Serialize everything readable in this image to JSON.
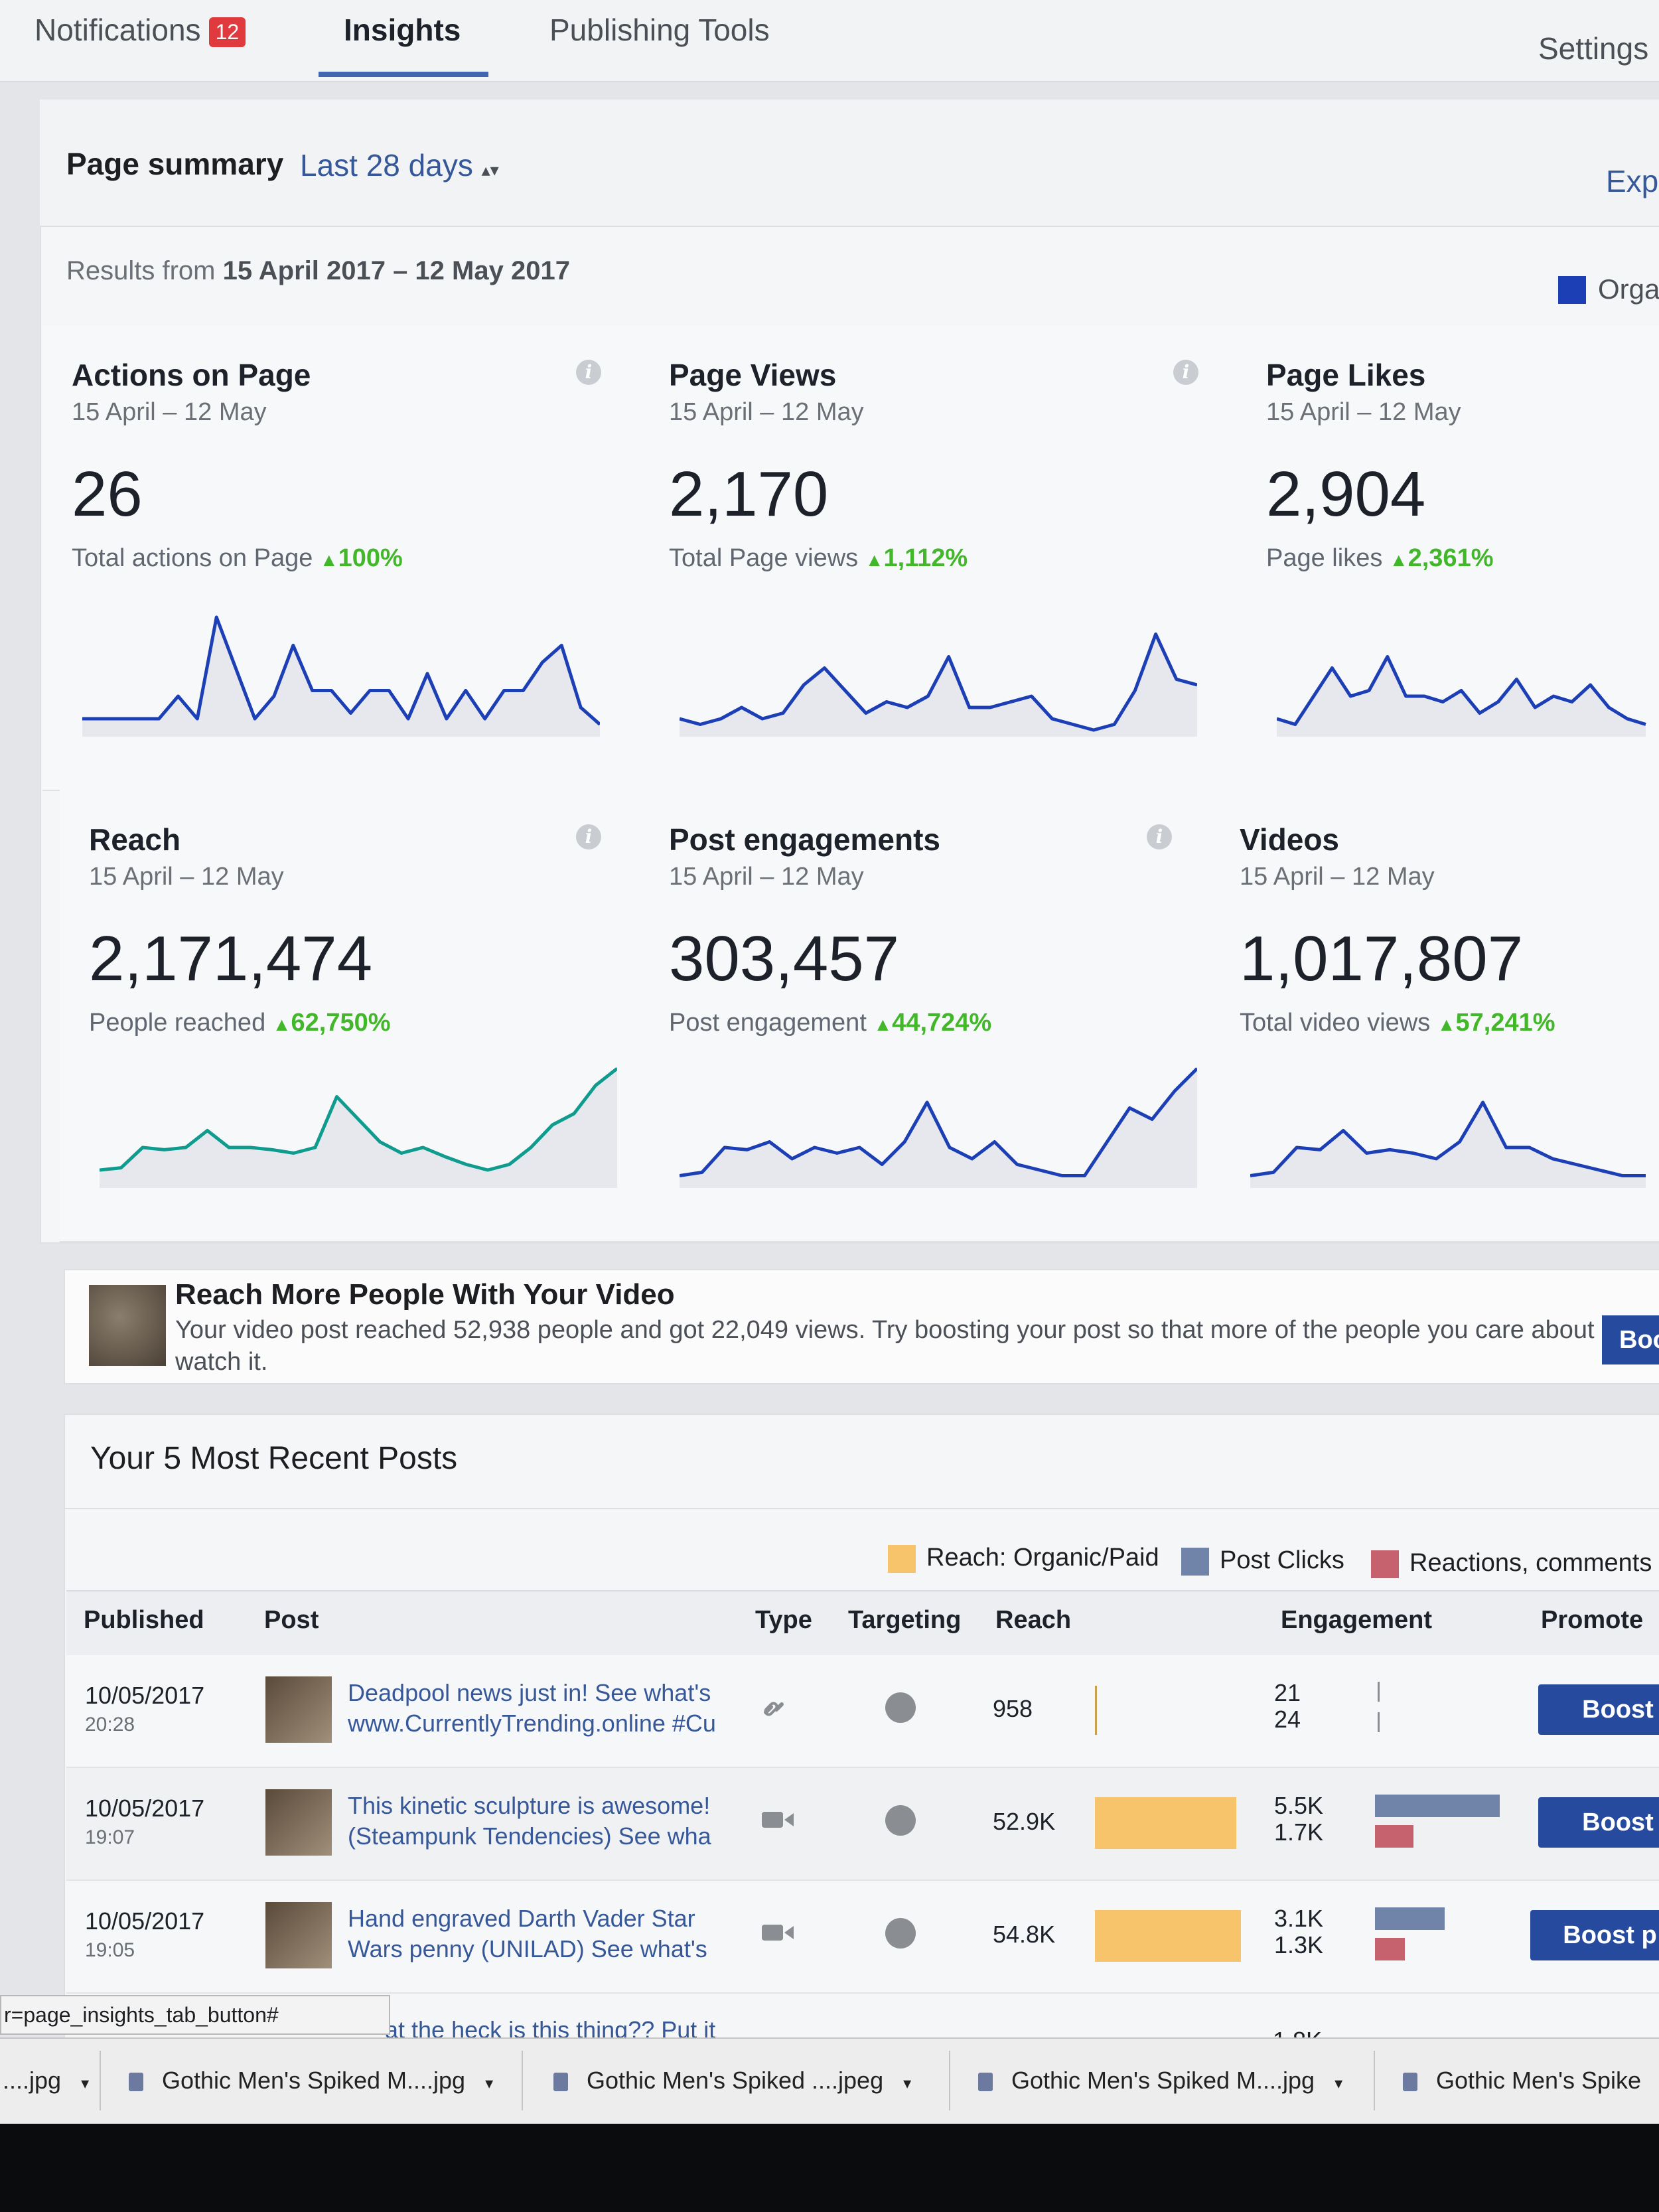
{
  "nav": {
    "notifications_label": "Notifications",
    "notifications_count": "12",
    "insights_label": "Insights",
    "publishing_label": "Publishing Tools",
    "settings_label": "Settings"
  },
  "summary": {
    "title": "Page summary",
    "period": "Last 28 days",
    "export_label": "Exp",
    "results_prefix": "Results from",
    "results_range": "15 April 2017 – 12 May 2017",
    "legend_label": "Orga"
  },
  "cards": [
    {
      "title": "Actions on Page",
      "range": "15 April – 12 May",
      "value": "26",
      "sub": "Total actions on Page",
      "pct": "100%",
      "spark": [
        0.1,
        0.1,
        0.1,
        0.1,
        0.1,
        0.3,
        0.1,
        1.0,
        0.55,
        0.1,
        0.3,
        0.75,
        0.35,
        0.35,
        0.15,
        0.35,
        0.35,
        0.1,
        0.5,
        0.1,
        0.35,
        0.1,
        0.35,
        0.35,
        0.6,
        0.75,
        0.2,
        0.05
      ]
    },
    {
      "title": "Page Views",
      "range": "15 April – 12 May",
      "value": "2,170",
      "sub": "Total Page views",
      "pct": "1,112%",
      "spark": [
        0.1,
        0.05,
        0.1,
        0.2,
        0.1,
        0.15,
        0.4,
        0.55,
        0.35,
        0.15,
        0.25,
        0.2,
        0.3,
        0.65,
        0.2,
        0.2,
        0.25,
        0.3,
        0.1,
        0.05,
        0.0,
        0.05,
        0.35,
        0.85,
        0.45,
        0.4
      ]
    },
    {
      "title": "Page Likes",
      "range": "15 April – 12 May",
      "value": "2,904",
      "sub": "Page likes",
      "pct": "2,361%",
      "spark": [
        0.1,
        0.05,
        0.3,
        0.55,
        0.3,
        0.35,
        0.65,
        0.3,
        0.3,
        0.25,
        0.35,
        0.15,
        0.25,
        0.45,
        0.2,
        0.3,
        0.25,
        0.4,
        0.2,
        0.1,
        0.05
      ]
    },
    {
      "title": "Reach",
      "range": "15 April – 12 May",
      "value": "2,171,474",
      "sub": "People reached",
      "pct": "62,750%",
      "spark": [
        0.1,
        0.12,
        0.3,
        0.28,
        0.3,
        0.45,
        0.3,
        0.3,
        0.28,
        0.25,
        0.3,
        0.75,
        0.55,
        0.35,
        0.25,
        0.3,
        0.22,
        0.15,
        0.1,
        0.15,
        0.3,
        0.5,
        0.6,
        0.85,
        1.0
      ]
    },
    {
      "title": "Post engagements",
      "range": "15 April – 12 May",
      "value": "303,457",
      "sub": "Post engagement",
      "pct": "44,724%",
      "spark": [
        0.05,
        0.08,
        0.3,
        0.28,
        0.35,
        0.2,
        0.3,
        0.25,
        0.3,
        0.15,
        0.35,
        0.7,
        0.3,
        0.2,
        0.35,
        0.15,
        0.1,
        0.05,
        0.05,
        0.35,
        0.65,
        0.55,
        0.8,
        1.0
      ]
    },
    {
      "title": "Videos",
      "range": "15 April – 12 May",
      "value": "1,017,807",
      "sub": "Total video views",
      "pct": "57,241%",
      "spark": [
        0.05,
        0.08,
        0.3,
        0.28,
        0.45,
        0.25,
        0.28,
        0.25,
        0.2,
        0.35,
        0.7,
        0.3,
        0.3,
        0.2,
        0.15,
        0.1,
        0.05,
        0.05
      ]
    }
  ],
  "colors": {
    "accent": "#1c3fb5",
    "reach_line": "#0f9b8e",
    "positive": "#42b72a",
    "boost": "#264b9e"
  },
  "banner": {
    "title": "Reach More People With Your Video",
    "body": "Your video post reached 52,938 people and got 22,049 views. Try boosting your post so that more of the people you care about watch it.",
    "button": "Boo"
  },
  "posts": {
    "title": "Your 5 Most Recent Posts",
    "legend": [
      "Reach: Organic/Paid",
      "Post Clicks",
      "Reactions, comments"
    ],
    "columns": [
      "Published",
      "Post",
      "Type",
      "Targeting",
      "Reach",
      "Engagement",
      "Promote"
    ],
    "rows": [
      {
        "date": "10/05/2017",
        "time": "20:28",
        "text1": "Deadpool news just in! See what's",
        "text2": "www.CurrentlyTrending.online #Cu",
        "type": "link-icon",
        "reach": "958",
        "reach_frac": 0.01,
        "eng1": "21",
        "eng2": "24",
        "clicks_frac": 0.0,
        "react_frac": 0.0,
        "boost": "Boost"
      },
      {
        "date": "10/05/2017",
        "time": "19:07",
        "text1": "This kinetic sculpture is awesome!",
        "text2": "(Steampunk Tendencies) See wha",
        "type": "video-icon",
        "reach": "52.9K",
        "reach_frac": 0.97,
        "eng1": "5.5K",
        "eng2": "1.7K",
        "clicks_frac": 1.0,
        "react_frac": 0.31,
        "boost": "Boost"
      },
      {
        "date": "10/05/2017",
        "time": "19:05",
        "text1": "Hand engraved Darth Vader Star",
        "text2": "Wars penny (UNILAD) See what's",
        "type": "video-icon",
        "reach": "54.8K",
        "reach_frac": 1.0,
        "eng1": "3.1K",
        "eng2": "1.3K",
        "clicks_frac": 0.56,
        "react_frac": 0.24,
        "boost": "Boost p"
      }
    ],
    "partial_row_text": "at the heck is this thing?? Put it",
    "partial_row_eng": "1.8K"
  },
  "status_url": "r=page_insights_tab_button#",
  "downloads": [
    {
      "name": "....jpg"
    },
    {
      "name": "Gothic Men's Spiked M....jpg"
    },
    {
      "name": "Gothic Men's Spiked ....jpeg"
    },
    {
      "name": "Gothic Men's Spiked M....jpg"
    },
    {
      "name": "Gothic Men's Spike"
    }
  ]
}
